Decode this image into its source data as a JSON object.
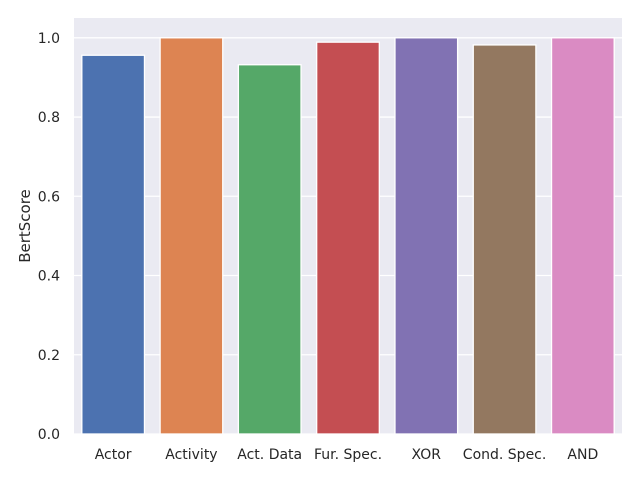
{
  "chart_data": {
    "type": "bar",
    "title": "",
    "xlabel": "",
    "ylabel": "BertScore",
    "categories": [
      "Actor",
      "Activity",
      "Act. Data",
      "Fur. Spec.",
      "XOR",
      "Cond. Spec.",
      "AND"
    ],
    "values": [
      0.956,
      1.0,
      0.932,
      0.989,
      1.0,
      0.982,
      1.0
    ],
    "colors": [
      "#4c72b0",
      "#dd8452",
      "#55a868",
      "#c44e52",
      "#8172b3",
      "#937860",
      "#da8bc3"
    ],
    "ylim": [
      0,
      1.05
    ],
    "yticks": [
      0.0,
      0.2,
      0.4,
      0.6,
      0.8,
      1.0
    ],
    "ytick_labels": [
      "0.0",
      "0.2",
      "0.4",
      "0.6",
      "0.8",
      "1.0"
    ],
    "grid": true,
    "background": "#eaeaf2",
    "grid_color": "#ffffff"
  }
}
